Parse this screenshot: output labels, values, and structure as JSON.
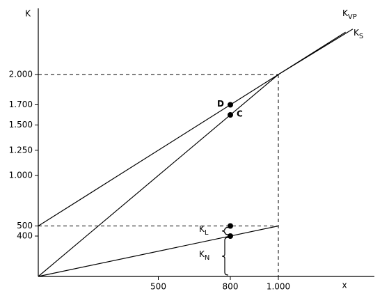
{
  "chart_data": {
    "type": "line",
    "y_label": "K",
    "x_label": "x",
    "xlim": [
      0,
      1400
    ],
    "ylim": [
      0,
      2700
    ],
    "xticks": [
      500,
      800,
      {
        "value": 1000,
        "label": "1.000"
      }
    ],
    "yticks": [
      400,
      500,
      {
        "value": 1000,
        "label": "1.000"
      },
      {
        "value": 1250,
        "label": "1.250"
      },
      {
        "value": 1500,
        "label": "1.500"
      },
      {
        "value": 1700,
        "label": "1.700"
      },
      {
        "value": 2000,
        "label": "2.000"
      }
    ],
    "series": [
      {
        "name": "K",
        "subscript": "VP",
        "x": [
          0,
          1000,
          1280
        ],
        "values": [
          500,
          2000,
          2420
        ]
      },
      {
        "name": "K",
        "subscript": "S",
        "x": [
          0,
          1000,
          1310
        ],
        "values": [
          0,
          2000,
          2450
        ]
      },
      {
        "x": [
          0,
          1000
        ],
        "values": [
          0,
          500
        ]
      }
    ],
    "guides": [
      {
        "x": [
          0,
          1000
        ],
        "values": [
          2000,
          2000
        ]
      },
      {
        "x": [
          1000,
          1000
        ],
        "values": [
          2000,
          0
        ]
      },
      {
        "x": [
          0,
          1000
        ],
        "values": [
          500,
          500
        ]
      }
    ],
    "points": [
      {
        "label": "D",
        "x": 800,
        "y": 1700
      },
      {
        "label": "C",
        "x": 800,
        "y": 1600
      },
      {
        "x": 800,
        "y": 500
      },
      {
        "x": 800,
        "y": 400
      }
    ],
    "braces": [
      {
        "name": "K",
        "subscript": "L",
        "from": 400,
        "to": 500
      },
      {
        "name": "K",
        "subscript": "N",
        "from": 0,
        "to": 400
      }
    ]
  }
}
